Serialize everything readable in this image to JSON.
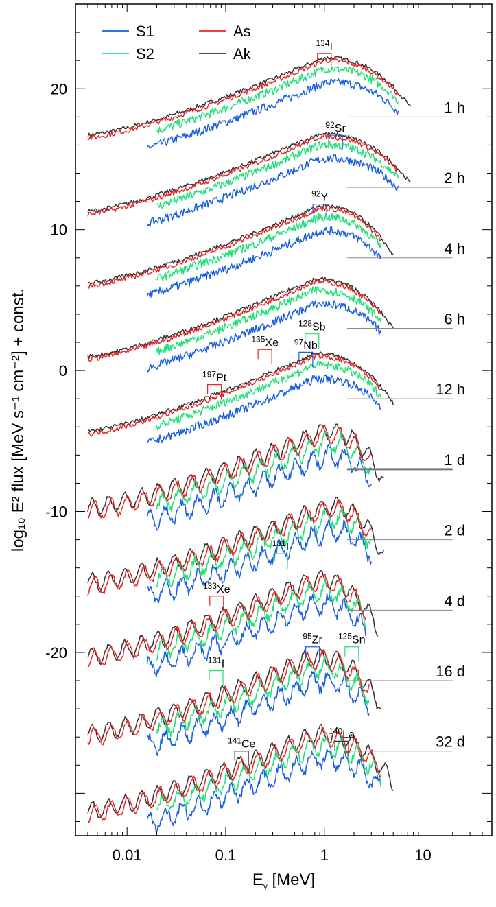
{
  "chart_data": {
    "type": "line",
    "title": "",
    "xlabel_main": "E",
    "xlabel_sub": "γ",
    "xlabel_unit": " [MeV]",
    "ylabel": "log₁₀ E² flux [MeV s⁻¹ cm⁻²] + const.",
    "xscale": "log",
    "xlim": [
      0.003,
      50
    ],
    "ylim": [
      -33,
      26
    ],
    "grid": false,
    "x_ticks": [
      {
        "value": 0.01,
        "label": "0.01"
      },
      {
        "value": 0.1,
        "label": "0.1"
      },
      {
        "value": 1,
        "label": "1"
      },
      {
        "value": 10,
        "label": "10"
      }
    ],
    "y_ticks": [
      {
        "value": 20,
        "label": "20"
      },
      {
        "value": 10,
        "label": "10"
      },
      {
        "value": 0,
        "label": "0"
      },
      {
        "value": -10,
        "label": "-10"
      },
      {
        "value": -20,
        "label": "-20"
      }
    ],
    "legend_position": "top-left",
    "legend": [
      {
        "name": "S1",
        "color": "#1a5fe0"
      },
      {
        "name": "S2",
        "color": "#22e07a"
      },
      {
        "name": "As",
        "color": "#ee2222"
      },
      {
        "name": "Ak",
        "color": "#333333"
      }
    ],
    "epochs": [
      {
        "label": "1 h",
        "baseline": 18,
        "x_start": 0.004,
        "x_end": 7.5,
        "peak_y": 22.0,
        "peak_x": 1.0
      },
      {
        "label": "2 h",
        "baseline": 13,
        "x_start": 0.004,
        "x_end": 7.5,
        "peak_y": 16.6,
        "peak_x": 0.9
      },
      {
        "label": "4 h",
        "baseline": 8,
        "x_start": 0.004,
        "x_end": 5.0,
        "peak_y": 11.5,
        "peak_x": 0.9
      },
      {
        "label": "6 h",
        "baseline": 3,
        "x_start": 0.004,
        "x_end": 5.0,
        "peak_y": 6.3,
        "peak_x": 0.8
      },
      {
        "label": "12 h",
        "baseline": -2,
        "x_start": 0.004,
        "x_end": 5.0,
        "peak_y": 1.0,
        "peak_x": 0.8
      },
      {
        "label": "1 d",
        "baseline": -7,
        "x_start": 0.004,
        "x_end": 4.0,
        "peak_y": -4.5,
        "peak_x": 1.0
      },
      {
        "label": "2 d",
        "baseline": -12,
        "x_start": 0.004,
        "x_end": 4.0,
        "peak_y": -9.8,
        "peak_x": 1.1
      },
      {
        "label": "4 d",
        "baseline": -17,
        "x_start": 0.004,
        "x_end": 3.5,
        "peak_y": -15.0,
        "peak_x": 0.8
      },
      {
        "label": "16 d",
        "baseline": -22,
        "x_start": 0.004,
        "x_end": 3.8,
        "peak_y": -20.5,
        "peak_x": 0.8
      },
      {
        "label": "32 d",
        "baseline": -27,
        "x_start": 0.004,
        "x_end": 5.0,
        "peak_y": -26.0,
        "peak_x": 0.8
      }
    ],
    "annotations": [
      {
        "iso": "134",
        "el": "I",
        "x": 1.0,
        "y": 22.5,
        "color": "#ee2222"
      },
      {
        "iso": "92",
        "el": "Sr",
        "x": 1.3,
        "y": 16.7,
        "color": "#1a5fe0"
      },
      {
        "iso": "92",
        "el": "Y",
        "x": 0.9,
        "y": 11.8,
        "color": "#1a5fe0"
      },
      {
        "iso": "128",
        "el": "Sb",
        "x": 0.75,
        "y": 2.6,
        "color": "#22e07a"
      },
      {
        "iso": "135",
        "el": "Xe",
        "x": 0.25,
        "y": 1.5,
        "color": "#ee2222"
      },
      {
        "iso": "97",
        "el": "Nb",
        "x": 0.65,
        "y": 1.3,
        "color": "#1a5fe0"
      },
      {
        "iso": "197",
        "el": "Pt",
        "x": 0.077,
        "y": -1.0,
        "color": "#ee2222"
      },
      {
        "iso": "131",
        "el": "I",
        "x": 0.36,
        "y": -13.0,
        "color": "#22e07a"
      },
      {
        "iso": "133",
        "el": "Xe",
        "x": 0.081,
        "y": -16.0,
        "color": "#ee2222"
      },
      {
        "iso": "95",
        "el": "Zr",
        "x": 0.76,
        "y": -19.6,
        "color": "#1a5fe0"
      },
      {
        "iso": "125",
        "el": "Sn",
        "x": 1.9,
        "y": -19.6,
        "color": "#22e07a"
      },
      {
        "iso": "131",
        "el": "I",
        "x": 0.08,
        "y": -21.3,
        "color": "#22e07a"
      },
      {
        "iso": "141",
        "el": "Ce",
        "x": 0.145,
        "y": -27.0,
        "color": "#333333"
      },
      {
        "iso": "140",
        "el": "La",
        "x": 1.5,
        "y": -26.3,
        "color": "#333333"
      }
    ]
  }
}
